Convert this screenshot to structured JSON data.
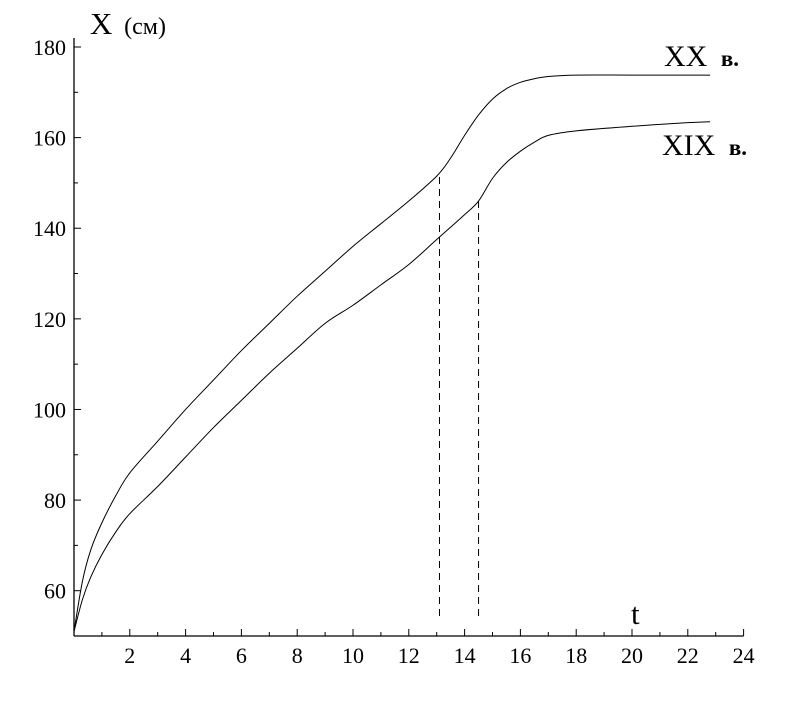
{
  "chart_data": {
    "type": "line",
    "xlabel": "t",
    "ylabel": "X",
    "ylabel_unit": "(см)",
    "xlim": [
      0,
      24
    ],
    "ylim": [
      50,
      182
    ],
    "x_ticks": [
      2,
      4,
      6,
      8,
      10,
      12,
      14,
      16,
      18,
      20,
      22,
      24
    ],
    "y_ticks": [
      60,
      80,
      100,
      120,
      140,
      160,
      180
    ],
    "grid": false,
    "series": [
      {
        "name": "XX",
        "name_suffix": "в.",
        "points": [
          [
            0,
            51
          ],
          [
            0.3,
            62
          ],
          [
            0.6,
            69
          ],
          [
            1,
            75
          ],
          [
            1.5,
            81
          ],
          [
            2,
            86
          ],
          [
            3,
            93
          ],
          [
            4,
            100
          ],
          [
            5,
            106.5
          ],
          [
            6,
            113
          ],
          [
            7,
            119
          ],
          [
            8,
            125
          ],
          [
            9,
            130.5
          ],
          [
            10,
            136
          ],
          [
            11,
            141
          ],
          [
            12,
            146
          ],
          [
            13,
            151.5
          ],
          [
            13.5,
            155.5
          ],
          [
            14,
            160.5
          ],
          [
            14.5,
            165
          ],
          [
            15,
            168.5
          ],
          [
            15.5,
            170.8
          ],
          [
            16,
            172.2
          ],
          [
            16.5,
            173
          ],
          [
            17,
            173.5
          ],
          [
            18,
            173.8
          ],
          [
            20,
            173.8
          ],
          [
            22,
            173.8
          ],
          [
            22.8,
            173.8
          ]
        ]
      },
      {
        "name": "XIX",
        "name_suffix": "в.",
        "points": [
          [
            0,
            51
          ],
          [
            0.3,
            58
          ],
          [
            0.6,
            63
          ],
          [
            1,
            68
          ],
          [
            1.5,
            73
          ],
          [
            2,
            77
          ],
          [
            3,
            83
          ],
          [
            4,
            89.5
          ],
          [
            5,
            96
          ],
          [
            6,
            102
          ],
          [
            7,
            108
          ],
          [
            8,
            113.5
          ],
          [
            9,
            119
          ],
          [
            10,
            123
          ],
          [
            11,
            127.5
          ],
          [
            12,
            132
          ],
          [
            13,
            137.5
          ],
          [
            14,
            143
          ],
          [
            14.5,
            146
          ],
          [
            15,
            151
          ],
          [
            15.5,
            154.5
          ],
          [
            16,
            157
          ],
          [
            16.5,
            159
          ],
          [
            17,
            160.5
          ],
          [
            18,
            161.5
          ],
          [
            20,
            162.5
          ],
          [
            22,
            163.3
          ],
          [
            22.8,
            163.5
          ]
        ]
      }
    ],
    "reference_lines": [
      13.1,
      14.5
    ]
  }
}
